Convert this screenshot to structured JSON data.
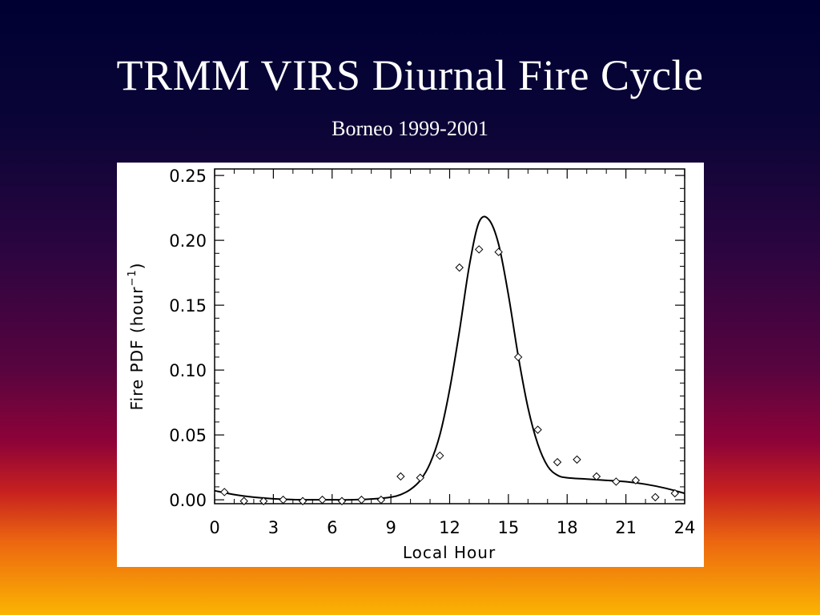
{
  "slide": {
    "title": "TRMM VIRS Diurnal Fire Cycle",
    "subtitle": "Borneo 1999-2001"
  },
  "theme": {
    "text_color": "#ffffff",
    "background_gradient": [
      "#000033",
      "#2a0540",
      "#8e0338",
      "#ec6610",
      "#fbb402"
    ],
    "plot_background": "#ffffff",
    "plot_ink": "#000000"
  },
  "chart_data": {
    "type": "scatter",
    "title": "",
    "xlabel": "Local Hour",
    "ylabel_main": "Fire PDF (hour",
    "ylabel_sup": "−1",
    "ylabel_close": ")",
    "xlim": [
      0,
      24
    ],
    "ylim": [
      -0.003,
      0.255
    ],
    "xticks": [
      0,
      3,
      6,
      9,
      12,
      15,
      18,
      21,
      24
    ],
    "xtick_labels": [
      "0",
      "3",
      "6",
      "9",
      "12",
      "15",
      "18",
      "21",
      "24"
    ],
    "yticks": [
      0.0,
      0.05,
      0.1,
      0.15,
      0.2,
      0.25
    ],
    "ytick_labels": [
      "0.00",
      "0.05",
      "0.10",
      "0.15",
      "0.20",
      "0.25"
    ],
    "grid": false,
    "series": [
      {
        "kind": "points",
        "marker": "diamond",
        "x": [
          0.5,
          1.5,
          2.5,
          3.5,
          4.5,
          5.5,
          6.5,
          7.5,
          8.5,
          9.5,
          10.5,
          11.5,
          12.5,
          13.5,
          14.5,
          15.5,
          16.5,
          17.5,
          18.5,
          19.5,
          20.5,
          21.5,
          22.5,
          23.5
        ],
        "y": [
          0.006,
          -0.001,
          -0.001,
          0.0,
          -0.001,
          0.0,
          -0.001,
          0.0,
          0.0,
          0.018,
          0.017,
          0.034,
          0.179,
          0.193,
          0.191,
          0.11,
          0.054,
          0.029,
          0.031,
          0.018,
          0.014,
          0.015,
          0.002,
          0.005
        ]
      },
      {
        "kind": "line",
        "x": [
          0,
          1,
          2,
          3,
          4,
          5,
          6,
          7,
          8,
          9,
          9.5,
          10,
          10.5,
          11,
          11.5,
          12,
          12.5,
          13,
          13.5,
          14,
          14.5,
          15,
          15.5,
          16,
          16.5,
          17,
          17.5,
          18,
          19,
          20,
          21,
          22,
          23,
          24
        ],
        "y": [
          0.007,
          0.004,
          0.002,
          0.0008,
          0.0002,
          0.0,
          0.0,
          0.0,
          0.0006,
          0.002,
          0.004,
          0.008,
          0.015,
          0.028,
          0.05,
          0.085,
          0.13,
          0.18,
          0.214,
          0.216,
          0.197,
          0.158,
          0.111,
          0.071,
          0.043,
          0.026,
          0.019,
          0.017,
          0.016,
          0.015,
          0.014,
          0.012,
          0.009,
          0.005
        ]
      }
    ]
  }
}
